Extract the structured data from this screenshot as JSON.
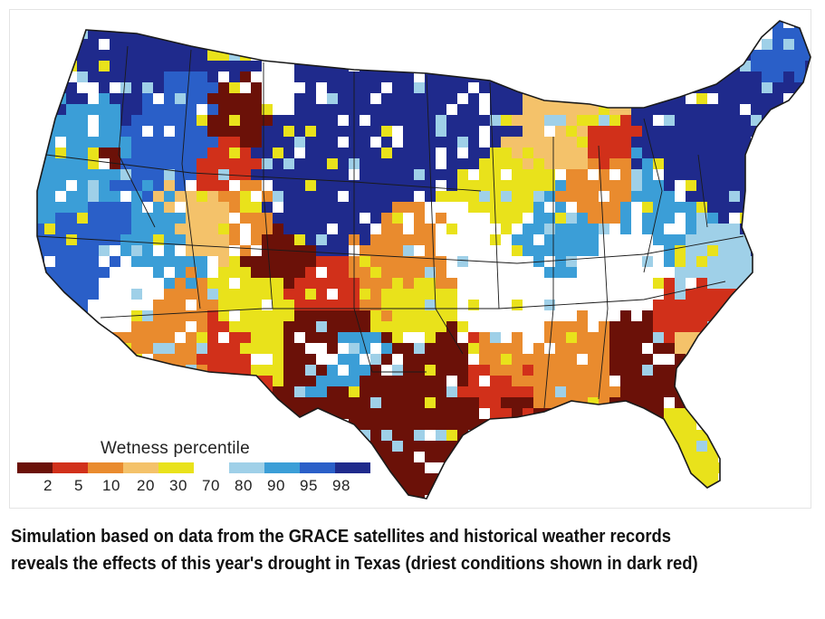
{
  "legend": {
    "title": "Wetness percentile",
    "ticks": [
      "2",
      "5",
      "10",
      "20",
      "30",
      "70",
      "80",
      "90",
      "95",
      "98"
    ],
    "colors": [
      "#6b1108",
      "#d1301a",
      "#e98b2e",
      "#f4c26a",
      "#e9e21b",
      "#ffffff",
      "#9fd0e8",
      "#3b9ed7",
      "#2a5fc8",
      "#1f2a8c"
    ]
  },
  "caption": "Simulation based on data from the GRACE satellites and historical weather records reveals the effects of this year's drought in Texas (driest conditions shown in dark red)",
  "map": {
    "region": "Contiguous United States",
    "palette": {
      "dry_extreme": "#6b1108",
      "dry": "#d1301a",
      "orange": "#e98b2e",
      "tan": "#f4c26a",
      "yellow": "#e9e21b",
      "normal": "#ffffff",
      "light_blue": "#9fd0e8",
      "blue": "#3b9ed7",
      "mid_blue": "#2a5fc8",
      "wet_extreme": "#1f2a8c",
      "border": "#1a1a1a"
    }
  }
}
